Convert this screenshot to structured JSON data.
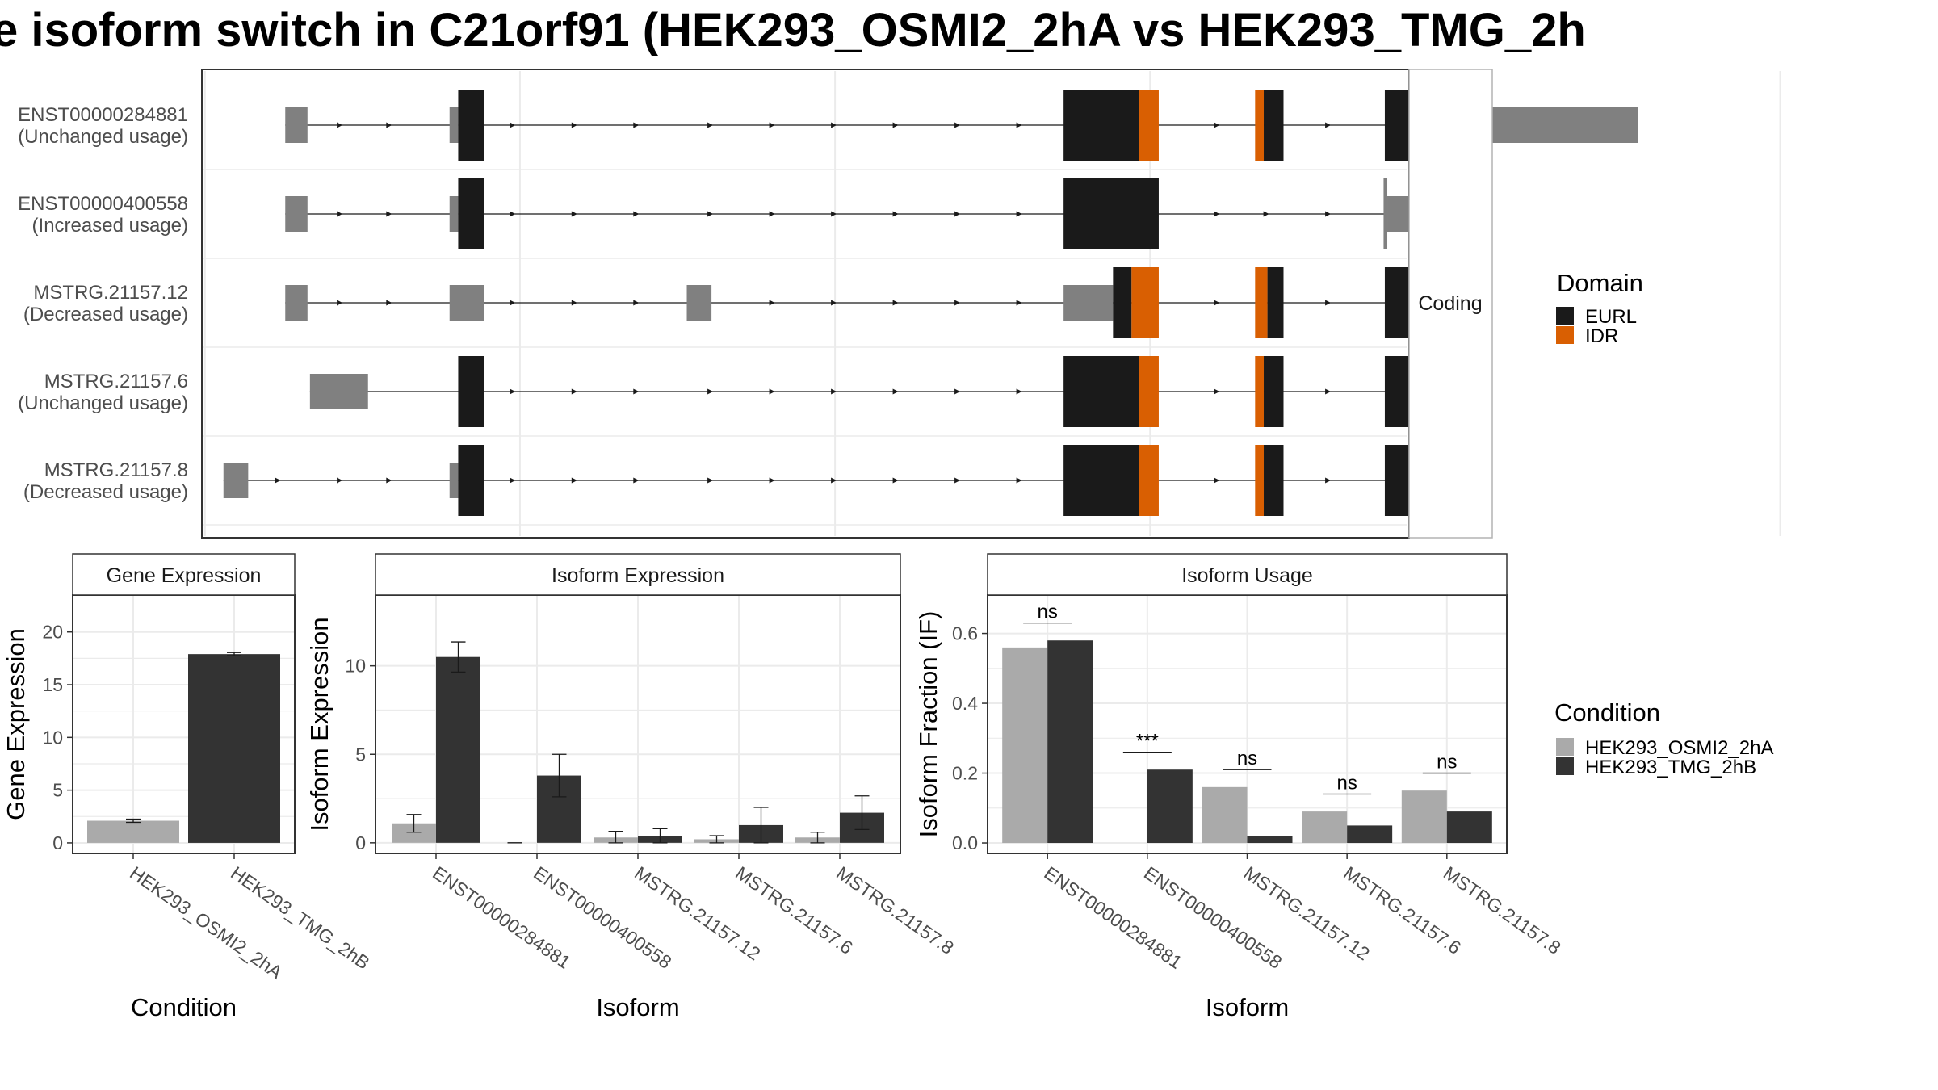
{
  "title": "e isoform switch in C21orf91 (HEK293_OSMI2_2hA vs HEK293_TMG_2h",
  "colors": {
    "EURL": "#1a1a1a",
    "IDR": "#d95f02",
    "utr": "#808080",
    "cond_A": "#aaaaaa",
    "cond_B": "#333333",
    "grid": "#ebebeb",
    "border": "#333333"
  },
  "structure": {
    "facet_label": "Coding",
    "legend_title": "Domain",
    "legend_items": [
      "EURL",
      "IDR"
    ],
    "transcripts": [
      {
        "id": "ENST00000284881",
        "usage": "(Unchanged usage)",
        "exons": [
          {
            "s": 2.5,
            "e": 4.3,
            "k": "utr",
            "w": "thin"
          },
          {
            "s": 15.8,
            "e": 16.5,
            "k": "utr",
            "w": "thin"
          },
          {
            "s": 16.5,
            "e": 18.6,
            "k": "EURL",
            "w": "full"
          },
          {
            "s": 65.5,
            "e": 71.6,
            "k": "EURL",
            "w": "full"
          },
          {
            "s": 71.6,
            "e": 73.2,
            "k": "IDR",
            "w": "full"
          },
          {
            "s": 81.0,
            "e": 81.7,
            "k": "IDR",
            "w": "full"
          },
          {
            "s": 81.7,
            "e": 83.3,
            "k": "EURL",
            "w": "full"
          },
          {
            "s": 91.5,
            "e": 94.0,
            "k": "EURL",
            "w": "full"
          },
          {
            "s": 94.0,
            "e": 95.0,
            "k": "utr",
            "w": "full"
          },
          {
            "s": 95.0,
            "e": 112.0,
            "k": "utr",
            "w": "thin"
          }
        ],
        "arrows": [
          7,
          11,
          21,
          26,
          31,
          37,
          42,
          47,
          52,
          57,
          62,
          78,
          87
        ]
      },
      {
        "id": "ENST00000400558",
        "usage": "(Increased usage)",
        "exons": [
          {
            "s": 2.5,
            "e": 4.3,
            "k": "utr",
            "w": "thin"
          },
          {
            "s": 15.8,
            "e": 16.5,
            "k": "utr",
            "w": "thin"
          },
          {
            "s": 16.5,
            "e": 18.6,
            "k": "EURL",
            "w": "full"
          },
          {
            "s": 65.5,
            "e": 73.2,
            "k": "EURL",
            "w": "full"
          },
          {
            "s": 91.4,
            "e": 91.7,
            "k": "utr",
            "w": "full"
          },
          {
            "s": 91.7,
            "e": 99.0,
            "k": "utr",
            "w": "thin"
          }
        ],
        "arrows": [
          7,
          11,
          21,
          26,
          31,
          37,
          42,
          47,
          52,
          57,
          62,
          78,
          82,
          87
        ]
      },
      {
        "id": "MSTRG.21157.12",
        "usage": "(Decreased usage)",
        "exons": [
          {
            "s": 2.5,
            "e": 4.3,
            "k": "utr",
            "w": "thin"
          },
          {
            "s": 15.8,
            "e": 18.6,
            "k": "utr",
            "w": "thin"
          },
          {
            "s": 35.0,
            "e": 37.0,
            "k": "utr",
            "w": "thin"
          },
          {
            "s": 65.5,
            "e": 69.5,
            "k": "utr",
            "w": "thin"
          },
          {
            "s": 69.5,
            "e": 71.0,
            "k": "EURL",
            "w": "full"
          },
          {
            "s": 71.0,
            "e": 73.2,
            "k": "IDR",
            "w": "full"
          },
          {
            "s": 81.0,
            "e": 82.0,
            "k": "IDR",
            "w": "full"
          },
          {
            "s": 82.0,
            "e": 83.3,
            "k": "EURL",
            "w": "full"
          },
          {
            "s": 91.5,
            "e": 94.0,
            "k": "EURL",
            "w": "full"
          },
          {
            "s": 94.0,
            "e": 97.0,
            "k": "utr",
            "w": "thin"
          }
        ],
        "arrows": [
          7,
          11,
          21,
          26,
          31,
          42,
          47,
          52,
          57,
          62,
          78,
          87
        ]
      },
      {
        "id": "MSTRG.21157.6",
        "usage": "(Unchanged usage)",
        "exons": [
          {
            "s": 4.5,
            "e": 9.2,
            "k": "utr",
            "w": "thin"
          },
          {
            "s": 16.5,
            "e": 18.6,
            "k": "EURL",
            "w": "full"
          },
          {
            "s": 65.5,
            "e": 71.6,
            "k": "EURL",
            "w": "full"
          },
          {
            "s": 71.6,
            "e": 73.2,
            "k": "IDR",
            "w": "full"
          },
          {
            "s": 81.0,
            "e": 81.7,
            "k": "IDR",
            "w": "full"
          },
          {
            "s": 81.7,
            "e": 83.3,
            "k": "EURL",
            "w": "full"
          },
          {
            "s": 91.5,
            "e": 94.0,
            "k": "EURL",
            "w": "full"
          },
          {
            "s": 94.0,
            "e": 99.0,
            "k": "utr",
            "w": "thin"
          }
        ],
        "arrows": [
          21,
          26,
          31,
          37,
          42,
          47,
          52,
          57,
          62,
          78,
          87
        ]
      },
      {
        "id": "MSTRG.21157.8",
        "usage": "(Decreased usage)",
        "exons": [
          {
            "s": -2.5,
            "e": -0.5,
            "k": "utr",
            "w": "thin"
          },
          {
            "s": 15.8,
            "e": 16.5,
            "k": "utr",
            "w": "thin"
          },
          {
            "s": 16.5,
            "e": 18.6,
            "k": "EURL",
            "w": "full"
          },
          {
            "s": 65.5,
            "e": 71.6,
            "k": "EURL",
            "w": "full"
          },
          {
            "s": 71.6,
            "e": 73.2,
            "k": "IDR",
            "w": "full"
          },
          {
            "s": 81.0,
            "e": 81.7,
            "k": "IDR",
            "w": "full"
          },
          {
            "s": 81.7,
            "e": 83.3,
            "k": "EURL",
            "w": "full"
          },
          {
            "s": 91.5,
            "e": 94.0,
            "k": "EURL",
            "w": "full"
          },
          {
            "s": 94.0,
            "e": 97.5,
            "k": "utr",
            "w": "thin"
          }
        ],
        "arrows": [
          2,
          7,
          11,
          21,
          26,
          31,
          37,
          42,
          47,
          52,
          57,
          62,
          78,
          87
        ]
      }
    ]
  },
  "chart_data": [
    {
      "type": "bar",
      "title": "Gene Expression",
      "xlabel": "Condition",
      "ylabel": "Gene Expression",
      "ylim": [
        -1,
        23.5
      ],
      "yticks": [
        0,
        5,
        10,
        15,
        20
      ],
      "categories": [
        "HEK293_OSMI2_2hA",
        "HEK293_TMG_2hB"
      ],
      "series": [
        {
          "name": "HEK293_OSMI2_2hA",
          "values": [
            2.1,
            null
          ],
          "err": [
            0.15,
            null
          ]
        },
        {
          "name": "HEK293_TMG_2hB",
          "values": [
            null,
            17.9
          ],
          "err": [
            null,
            0.15
          ]
        }
      ]
    },
    {
      "type": "bar",
      "title": "Isoform Expression",
      "xlabel": "Isoform",
      "ylabel": "Isoform Expression",
      "ylim": [
        -0.6,
        14.0
      ],
      "yticks": [
        0,
        5,
        10
      ],
      "categories": [
        "ENST00000284881",
        "ENST00000400558",
        "MSTRG.21157.12",
        "MSTRG.21157.6",
        "MSTRG.21157.8"
      ],
      "series": [
        {
          "name": "HEK293_OSMI2_2hA",
          "values": [
            1.1,
            0.0,
            0.3,
            0.2,
            0.3
          ],
          "err": [
            0.5,
            0.0,
            0.35,
            0.2,
            0.3
          ]
        },
        {
          "name": "HEK293_TMG_2hB",
          "values": [
            10.5,
            3.8,
            0.4,
            1.0,
            1.7
          ],
          "err": [
            0.85,
            1.2,
            0.4,
            1.0,
            0.95
          ]
        }
      ]
    },
    {
      "type": "bar",
      "title": "Isoform Usage",
      "xlabel": "Isoform",
      "ylabel": "Isoform Fraction (IF)",
      "ylim": [
        -0.03,
        0.71
      ],
      "yticks": [
        0.0,
        0.2,
        0.4,
        0.6
      ],
      "ytick_labels": [
        "0.0",
        "0.2",
        "0.4",
        "0.6"
      ],
      "categories": [
        "ENST00000284881",
        "ENST00000400558",
        "MSTRG.21157.12",
        "MSTRG.21157.6",
        "MSTRG.21157.8"
      ],
      "series": [
        {
          "name": "HEK293_OSMI2_2hA",
          "values": [
            0.56,
            0.0,
            0.16,
            0.09,
            0.15
          ]
        },
        {
          "name": "HEK293_TMG_2hB",
          "values": [
            0.58,
            0.21,
            0.02,
            0.05,
            0.09
          ]
        }
      ],
      "significance": [
        "ns",
        "***",
        "ns",
        "ns",
        "ns"
      ]
    }
  ],
  "condition_legend": {
    "title": "Condition",
    "items": [
      "HEK293_OSMI2_2hA",
      "HEK293_TMG_2hB"
    ]
  }
}
